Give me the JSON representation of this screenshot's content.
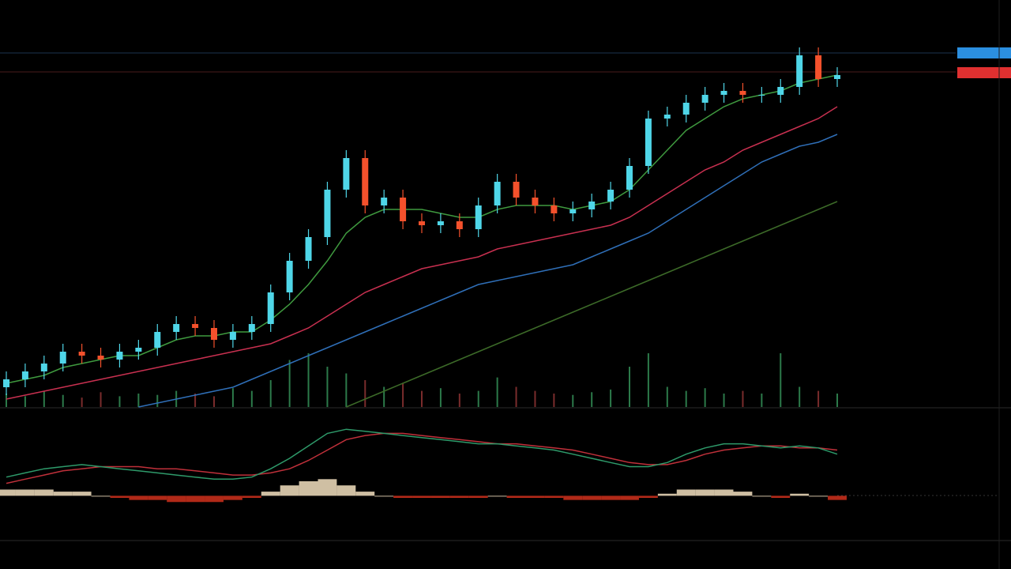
{
  "chart_data": {
    "type": "candlestick",
    "up_color": "#4fd6e8",
    "down_color": "#f4512c",
    "ylim": [
      0,
      103
    ],
    "open": [
      5,
      7,
      9,
      11,
      14,
      13,
      12,
      14,
      15,
      19,
      21,
      20,
      17,
      19,
      21,
      29,
      37,
      43,
      55,
      63,
      51,
      53,
      47,
      46,
      47,
      45,
      51,
      57,
      53,
      51,
      49,
      50,
      52,
      55,
      61,
      73,
      74,
      77,
      79,
      80,
      79,
      79,
      81,
      89,
      83
    ],
    "high": [
      9,
      11,
      13,
      16,
      16,
      15,
      16,
      17,
      21,
      23,
      23,
      22,
      21,
      23,
      31,
      39,
      45,
      57,
      65,
      65,
      55,
      55,
      49,
      49,
      49,
      53,
      59,
      59,
      55,
      53,
      52,
      54,
      57,
      63,
      75,
      76,
      79,
      81,
      82,
      82,
      81,
      83,
      91,
      91,
      86
    ],
    "low": [
      3,
      5,
      7,
      9,
      11,
      10,
      10,
      12,
      13,
      17,
      18,
      15,
      15,
      17,
      19,
      27,
      35,
      41,
      53,
      49,
      49,
      45,
      44,
      44,
      43,
      43,
      49,
      51,
      49,
      47,
      47,
      48,
      50,
      53,
      59,
      71,
      72,
      75,
      77,
      77,
      77,
      77,
      79,
      81,
      81
    ],
    "close": [
      7,
      9,
      11,
      14,
      13,
      12,
      14,
      15,
      19,
      21,
      20,
      17,
      19,
      21,
      29,
      37,
      43,
      55,
      63,
      51,
      53,
      47,
      46,
      47,
      45,
      51,
      57,
      53,
      51,
      49,
      50,
      52,
      55,
      61,
      73,
      74,
      77,
      79,
      80,
      79,
      79,
      81,
      89,
      83,
      84
    ],
    "moving_averages": [
      {
        "color": "#3f9a3f",
        "values": [
          6,
          7,
          8,
          10,
          11,
          12,
          13,
          13,
          15,
          17,
          18,
          18,
          19,
          19,
          22,
          26,
          31,
          37,
          44,
          48,
          50,
          50,
          50,
          49,
          48,
          48,
          50,
          51,
          51,
          51,
          50,
          51,
          52,
          55,
          60,
          65,
          70,
          73,
          76,
          78,
          79,
          80,
          82,
          83,
          84
        ]
      },
      {
        "color": "#c83050",
        "values": [
          2,
          3,
          4,
          5,
          6,
          7,
          8,
          9,
          10,
          11,
          12,
          13,
          14,
          15,
          16,
          18,
          20,
          23,
          26,
          29,
          31,
          33,
          35,
          36,
          37,
          38,
          40,
          41,
          42,
          43,
          44,
          45,
          46,
          48,
          51,
          54,
          57,
          60,
          62,
          65,
          67,
          69,
          71,
          73,
          76
        ]
      },
      {
        "color": "#2f6fb8",
        "values": [
          null,
          null,
          null,
          null,
          null,
          null,
          null,
          0,
          1,
          2,
          3,
          4,
          5,
          7,
          9,
          11,
          13,
          15,
          17,
          19,
          21,
          23,
          25,
          27,
          29,
          31,
          32,
          33,
          34,
          35,
          36,
          38,
          40,
          42,
          44,
          47,
          50,
          53,
          56,
          59,
          62,
          64,
          66,
          67,
          69
        ]
      },
      {
        "color": "#3c6a28",
        "values": [
          null,
          null,
          null,
          null,
          null,
          null,
          null,
          null,
          null,
          null,
          null,
          null,
          null,
          null,
          null,
          null,
          null,
          null,
          0,
          2,
          4,
          6,
          8,
          10,
          12,
          14,
          16,
          18,
          20,
          22,
          24,
          26,
          28,
          30,
          32,
          34,
          36,
          38,
          40,
          42,
          44,
          46,
          48,
          50,
          52
        ]
      }
    ],
    "volume": {
      "ylim": [
        0,
        50
      ],
      "values": [
        10,
        8,
        12,
        9,
        7,
        11,
        8,
        10,
        9,
        12,
        10,
        8,
        14,
        12,
        20,
        35,
        40,
        30,
        25,
        20,
        15,
        18,
        12,
        14,
        10,
        12,
        22,
        15,
        12,
        10,
        9,
        11,
        13,
        30,
        40,
        15,
        12,
        14,
        10,
        12,
        10,
        40,
        15,
        12,
        10
      ]
    },
    "macd": {
      "ylim": [
        -2,
        3.7
      ],
      "macd_color": "#2e9a6a",
      "signal_color": "#c0303a",
      "hist_up_color": "#f3e0c0",
      "hist_down_color": "#d0301c",
      "macd": [
        0.9,
        1.1,
        1.3,
        1.4,
        1.5,
        1.4,
        1.3,
        1.2,
        1.1,
        1.0,
        0.9,
        0.8,
        0.8,
        0.9,
        1.3,
        1.8,
        2.4,
        3.0,
        3.2,
        3.1,
        3.0,
        2.9,
        2.8,
        2.7,
        2.6,
        2.5,
        2.5,
        2.4,
        2.3,
        2.2,
        2.0,
        1.8,
        1.6,
        1.4,
        1.4,
        1.6,
        2.0,
        2.3,
        2.5,
        2.5,
        2.4,
        2.3,
        2.4,
        2.3,
        2.0
      ],
      "signal": [
        0.6,
        0.8,
        1.0,
        1.2,
        1.3,
        1.4,
        1.4,
        1.4,
        1.3,
        1.3,
        1.2,
        1.1,
        1.0,
        1.0,
        1.1,
        1.3,
        1.7,
        2.2,
        2.7,
        2.9,
        3.0,
        3.0,
        2.9,
        2.8,
        2.7,
        2.6,
        2.5,
        2.5,
        2.4,
        2.3,
        2.2,
        2.0,
        1.8,
        1.6,
        1.5,
        1.5,
        1.7,
        2.0,
        2.2,
        2.3,
        2.4,
        2.4,
        2.3,
        2.3,
        2.2
      ],
      "histogram": [
        0.3,
        0.3,
        0.3,
        0.2,
        0.2,
        0,
        -0.1,
        -0.2,
        -0.2,
        -0.3,
        -0.3,
        -0.3,
        -0.2,
        -0.1,
        0.2,
        0.5,
        0.7,
        0.8,
        0.5,
        0.2,
        0,
        -0.1,
        -0.1,
        -0.1,
        -0.1,
        -0.1,
        0,
        -0.1,
        -0.1,
        -0.1,
        -0.2,
        -0.2,
        -0.2,
        -0.2,
        -0.1,
        0.1,
        0.3,
        0.3,
        0.3,
        0.2,
        0,
        -0.1,
        0.1,
        0,
        -0.2
      ]
    }
  }
}
